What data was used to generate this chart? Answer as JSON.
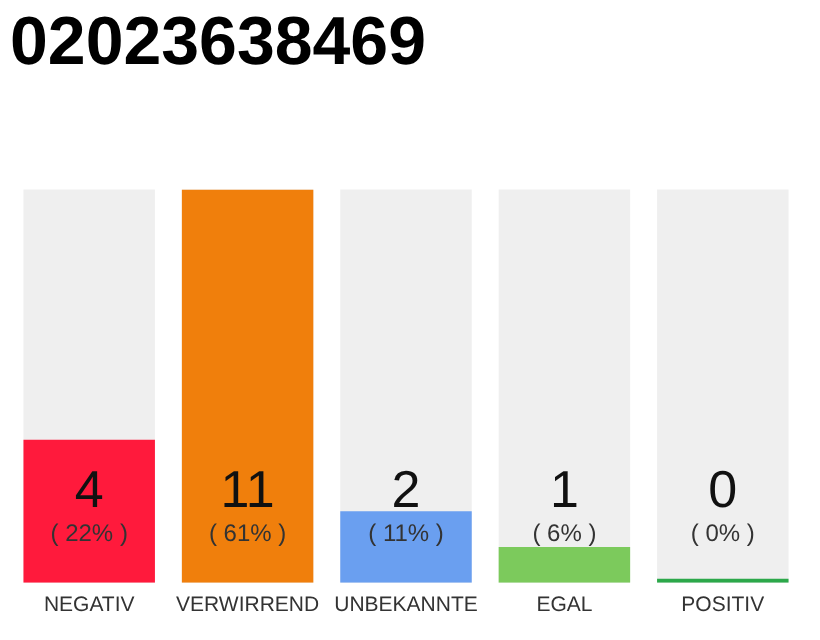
{
  "chart_data": {
    "type": "bar",
    "title": "02023638469",
    "categories": [
      "NEGATIV",
      "VERWIRREND",
      "UNBEKANNTE",
      "EGAL",
      "POSITIV"
    ],
    "values": [
      4,
      11,
      2,
      1,
      0
    ],
    "colors": [
      "#ff1a3c",
      "#f07f0c",
      "#6a9ff0",
      "#7cca5c",
      "#2ca84a"
    ],
    "ylim": [
      0,
      11
    ],
    "data_labels": true,
    "annotations": [
      "( 22% )",
      "( 61% )",
      "( 11% )",
      "( 6% )",
      "( 0% )"
    ],
    "grid": false,
    "legend": false
  }
}
